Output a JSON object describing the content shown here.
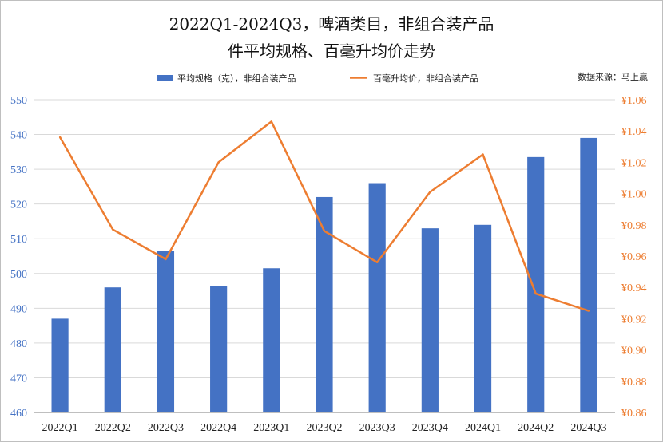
{
  "title_line1": "2022Q1-2024Q3，啤酒类目，非组合装产品",
  "title_line2": "件平均规格、百毫升均价走势",
  "source": "数据来源：马上赢",
  "colors": {
    "bar": "#4472C4",
    "line": "#ED7D31",
    "grid": "#D9D9D9"
  },
  "chart_data": {
    "type": "bar",
    "categories": [
      "2022Q1",
      "2022Q2",
      "2022Q3",
      "2022Q4",
      "2023Q1",
      "2023Q2",
      "2023Q3",
      "2023Q4",
      "2024Q1",
      "2024Q2",
      "2024Q3"
    ],
    "series": [
      {
        "name": "平均规格（克），非组合装产品",
        "type": "bar",
        "axis": "left",
        "values": [
          487,
          496,
          506.5,
          496.5,
          501.5,
          522,
          526,
          513,
          514,
          533.5,
          539
        ]
      },
      {
        "name": "百毫升均价，非组合装产品",
        "type": "line",
        "axis": "right",
        "values": [
          1.036,
          0.977,
          0.958,
          1.02,
          1.046,
          0.976,
          0.956,
          1.001,
          1.025,
          0.936,
          0.925
        ]
      }
    ],
    "y_left": {
      "min": 460,
      "max": 550,
      "ticks": [
        "460",
        "470",
        "480",
        "490",
        "500",
        "510",
        "520",
        "530",
        "540",
        "550"
      ]
    },
    "y_right": {
      "min": 0.86,
      "max": 1.06,
      "ticks": [
        "¥0.86",
        "¥0.88",
        "¥0.90",
        "¥0.92",
        "¥0.94",
        "¥0.96",
        "¥0.98",
        "¥1.00",
        "¥1.02",
        "¥1.04",
        "¥1.06"
      ]
    },
    "grid": true,
    "legend_position": "top"
  }
}
